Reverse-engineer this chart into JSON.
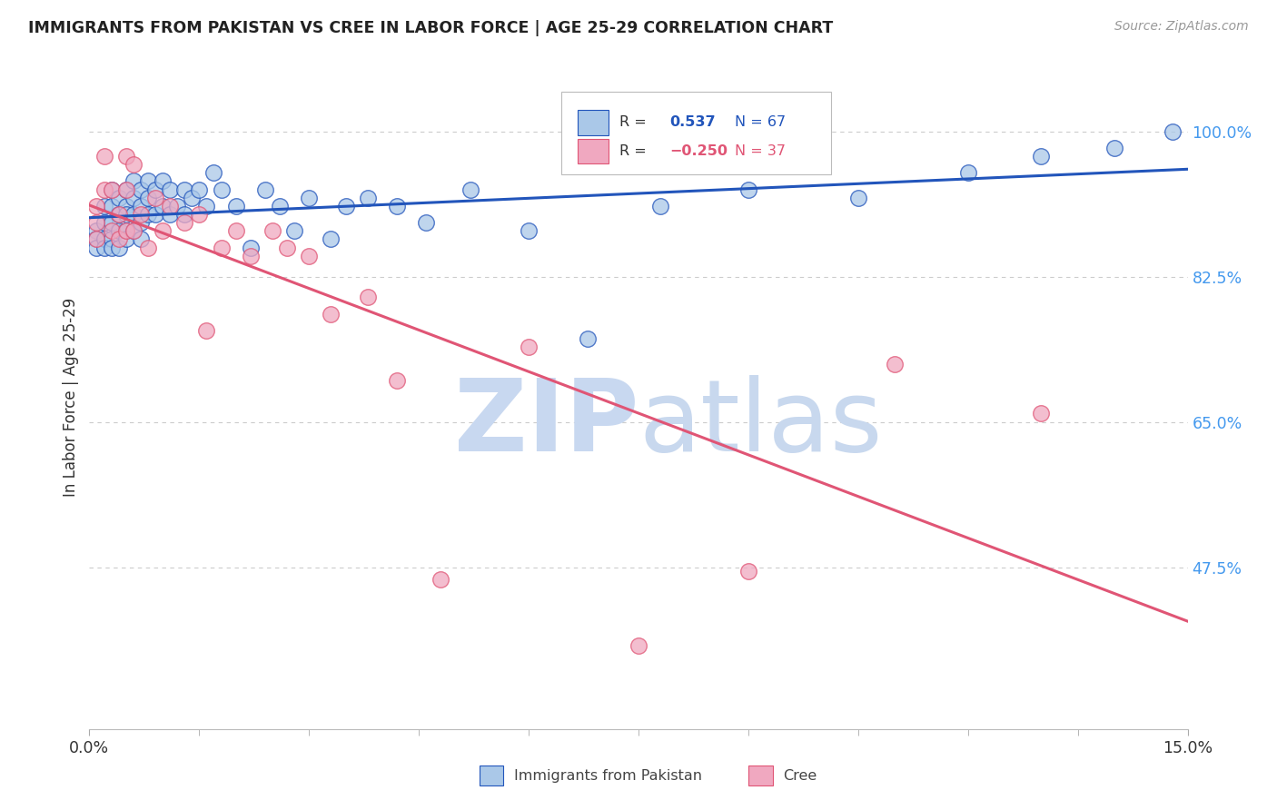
{
  "title": "IMMIGRANTS FROM PAKISTAN VS CREE IN LABOR FORCE | AGE 25-29 CORRELATION CHART",
  "source": "Source: ZipAtlas.com",
  "ylabel": "In Labor Force | Age 25-29",
  "ytick_vals": [
    1.0,
    0.825,
    0.65,
    0.475
  ],
  "ytick_labels": [
    "100.0%",
    "82.5%",
    "65.0%",
    "47.5%"
  ],
  "xlim": [
    0.0,
    0.15
  ],
  "ylim": [
    0.28,
    1.08
  ],
  "color_pakistan": "#aac8e8",
  "color_cree": "#f0a8c0",
  "line_color_pakistan": "#2255bb",
  "line_color_cree": "#e05575",
  "watermark_zip_color": "#c8d8f0",
  "watermark_atlas_color": "#c8d8ee",
  "background_color": "#ffffff",
  "grid_color": "#cccccc",
  "pakistan_x": [
    0.001,
    0.001,
    0.001,
    0.002,
    0.002,
    0.002,
    0.002,
    0.003,
    0.003,
    0.003,
    0.003,
    0.003,
    0.004,
    0.004,
    0.004,
    0.004,
    0.005,
    0.005,
    0.005,
    0.005,
    0.005,
    0.006,
    0.006,
    0.006,
    0.006,
    0.007,
    0.007,
    0.007,
    0.007,
    0.008,
    0.008,
    0.008,
    0.009,
    0.009,
    0.01,
    0.01,
    0.011,
    0.011,
    0.012,
    0.013,
    0.013,
    0.014,
    0.015,
    0.016,
    0.017,
    0.018,
    0.02,
    0.022,
    0.024,
    0.026,
    0.028,
    0.03,
    0.033,
    0.035,
    0.038,
    0.042,
    0.046,
    0.052,
    0.06,
    0.068,
    0.078,
    0.09,
    0.105,
    0.12,
    0.13,
    0.14,
    0.148
  ],
  "pakistan_y": [
    0.88,
    0.87,
    0.86,
    0.91,
    0.89,
    0.87,
    0.86,
    0.93,
    0.91,
    0.89,
    0.87,
    0.86,
    0.92,
    0.9,
    0.88,
    0.86,
    0.93,
    0.91,
    0.9,
    0.88,
    0.87,
    0.94,
    0.92,
    0.9,
    0.88,
    0.93,
    0.91,
    0.89,
    0.87,
    0.94,
    0.92,
    0.9,
    0.93,
    0.9,
    0.94,
    0.91,
    0.93,
    0.9,
    0.91,
    0.93,
    0.9,
    0.92,
    0.93,
    0.91,
    0.95,
    0.93,
    0.91,
    0.86,
    0.93,
    0.91,
    0.88,
    0.92,
    0.87,
    0.91,
    0.92,
    0.91,
    0.89,
    0.93,
    0.88,
    0.75,
    0.91,
    0.93,
    0.92,
    0.95,
    0.97,
    0.98,
    1.0
  ],
  "cree_x": [
    0.001,
    0.001,
    0.001,
    0.002,
    0.002,
    0.003,
    0.003,
    0.004,
    0.004,
    0.005,
    0.005,
    0.005,
    0.006,
    0.006,
    0.007,
    0.008,
    0.009,
    0.01,
    0.011,
    0.013,
    0.015,
    0.016,
    0.018,
    0.02,
    0.022,
    0.025,
    0.027,
    0.03,
    0.033,
    0.038,
    0.042,
    0.048,
    0.06,
    0.075,
    0.09,
    0.11,
    0.13
  ],
  "cree_y": [
    0.91,
    0.89,
    0.87,
    0.97,
    0.93,
    0.93,
    0.88,
    0.9,
    0.87,
    0.97,
    0.93,
    0.88,
    0.96,
    0.88,
    0.9,
    0.86,
    0.92,
    0.88,
    0.91,
    0.89,
    0.9,
    0.76,
    0.86,
    0.88,
    0.85,
    0.88,
    0.86,
    0.85,
    0.78,
    0.8,
    0.7,
    0.46,
    0.74,
    0.38,
    0.47,
    0.72,
    0.66
  ],
  "xticks_minor": [
    0.0,
    0.015,
    0.03,
    0.045,
    0.06,
    0.075,
    0.09,
    0.105,
    0.12,
    0.135,
    0.15
  ]
}
